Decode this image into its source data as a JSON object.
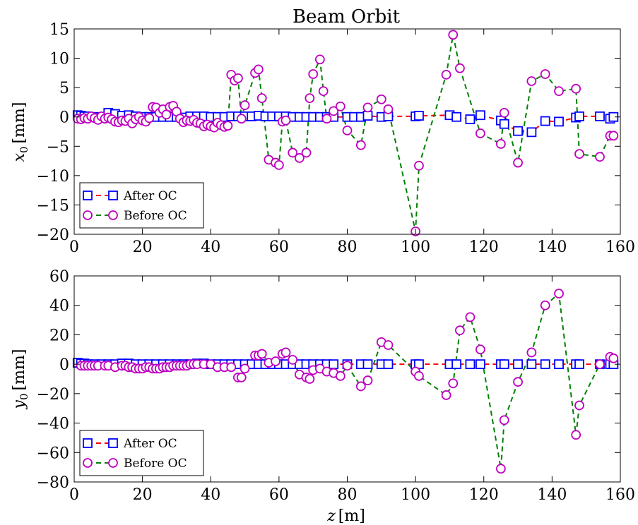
{
  "figure_title": "Beam Orbit",
  "colors": {
    "after": "#0000ff",
    "after_line": "#ff0000",
    "before": "#bf00bf",
    "before_line": "#008000"
  },
  "chart_data": [
    {
      "type": "line",
      "title": "Beam Orbit",
      "xlabel": "",
      "ylabel": "x_0 [mm]",
      "ylabel_var": "x",
      "ylabel_sub": "0",
      "ylabel_unit": "[mm]",
      "xlim": [
        0,
        160
      ],
      "ylim": [
        -20,
        15
      ],
      "xticks": [
        0,
        20,
        40,
        60,
        80,
        100,
        120,
        140,
        160
      ],
      "yticks": [
        -20,
        -15,
        -10,
        -5,
        0,
        5,
        10,
        15
      ],
      "legend_position": "bottom-left",
      "series": [
        {
          "name": "After OC",
          "marker": "square",
          "x": [
            1,
            2,
            3,
            4,
            6,
            8,
            10,
            12,
            14,
            16,
            18,
            20,
            22,
            24,
            26,
            28,
            30,
            32,
            34,
            36,
            38,
            40,
            42,
            44,
            46,
            48,
            50,
            52,
            54,
            56,
            58,
            60,
            62,
            64,
            66,
            68,
            70,
            72,
            74,
            76,
            80,
            82,
            84,
            86,
            90,
            92,
            100,
            101,
            110,
            112,
            116,
            119,
            125,
            126,
            130,
            134,
            138,
            142,
            147,
            148,
            154,
            157,
            158
          ],
          "y": [
            0.3,
            0.2,
            0.1,
            0.1,
            0,
            -0.1,
            0.7,
            0.5,
            0.2,
            0.3,
            0.1,
            0,
            0,
            0,
            0,
            0,
            0,
            -0.1,
            0.1,
            0.1,
            0.1,
            0,
            0,
            0,
            0.1,
            0.1,
            0.1,
            0.1,
            0.2,
            0.1,
            0.1,
            0.1,
            0.1,
            0,
            0,
            0,
            0,
            0,
            0,
            0,
            0,
            0,
            0,
            0.2,
            0,
            0.1,
            0.1,
            0.2,
            0.3,
            0,
            -0.4,
            0.3,
            -0.6,
            -1.2,
            -2.4,
            -2.6,
            -0.7,
            -0.8,
            -0.1,
            0.1,
            0.1,
            -0.3,
            0
          ]
        },
        {
          "name": "Before OC",
          "marker": "circle",
          "x": [
            1,
            2,
            3,
            4,
            5,
            6,
            7,
            8,
            9,
            10,
            11,
            12,
            13,
            14,
            15,
            16,
            17,
            18,
            19,
            20,
            21,
            22,
            23,
            24,
            25,
            26,
            27,
            28,
            29,
            30,
            31,
            32,
            33,
            34,
            35,
            36,
            37,
            38,
            39,
            40,
            41,
            42,
            43,
            44,
            45,
            46,
            47,
            48,
            49,
            50,
            53,
            54,
            55,
            57,
            59,
            60,
            61,
            62,
            64,
            66,
            68,
            69,
            70,
            72,
            73,
            74,
            76,
            78,
            80,
            84,
            86,
            90,
            92,
            100,
            101,
            109,
            111,
            113,
            119,
            125,
            126,
            130,
            134,
            138,
            142,
            147,
            148,
            154,
            157,
            158
          ],
          "y": [
            -0.3,
            -0.4,
            -0.2,
            -0.3,
            0.1,
            -0.2,
            -0.5,
            0.1,
            -0.3,
            -0.1,
            -0.4,
            -0.8,
            -0.9,
            -0.6,
            -0.7,
            -0.3,
            -1.1,
            -0.4,
            0,
            -0.6,
            -0.8,
            -0.2,
            1.7,
            1.6,
            0.7,
            1.3,
            0.4,
            1.7,
            1.9,
            0.9,
            -0.3,
            -0.9,
            -0.6,
            -0.7,
            -0.5,
            -1,
            -1.1,
            -1.6,
            -1.3,
            -1.6,
            -1.8,
            -1,
            -1.4,
            -1.7,
            -1.5,
            7.2,
            6.2,
            6.6,
            -0.3,
            2,
            7.5,
            8.1,
            3.2,
            -7.3,
            -7.8,
            -8.2,
            -0.8,
            -0.6,
            -6.1,
            -7,
            -6.1,
            3.2,
            7.3,
            9.8,
            4.4,
            -0.3,
            1,
            1.8,
            -2.3,
            -4.8,
            1.6,
            3,
            1.3,
            -19.5,
            -8.3,
            7.2,
            14,
            8.3,
            -2.8,
            -4.6,
            0.7,
            -7.8,
            6.1,
            7.3,
            4.4,
            4.8,
            -6.3,
            -6.8,
            -3.2,
            -3.2
          ]
        }
      ]
    },
    {
      "type": "line",
      "title": "",
      "xlabel": "z [m]",
      "xlabel_var": "z",
      "xlabel_unit": "[m]",
      "ylabel": "y_0 [mm]",
      "ylabel_var": "y",
      "ylabel_sub": "0",
      "ylabel_unit": "[mm]",
      "xlim": [
        0,
        160
      ],
      "ylim": [
        -80,
        60
      ],
      "xticks": [
        0,
        20,
        40,
        60,
        80,
        100,
        120,
        140,
        160
      ],
      "yticks": [
        -80,
        -60,
        -40,
        -20,
        0,
        20,
        40,
        60
      ],
      "legend_position": "bottom-left",
      "series": [
        {
          "name": "After OC",
          "marker": "square",
          "x": [
            1,
            2,
            3,
            4,
            6,
            8,
            10,
            12,
            14,
            16,
            18,
            20,
            22,
            24,
            26,
            28,
            30,
            32,
            34,
            36,
            38,
            40,
            42,
            44,
            46,
            48,
            50,
            52,
            54,
            56,
            58,
            60,
            62,
            64,
            66,
            68,
            70,
            72,
            74,
            76,
            80,
            84,
            86,
            90,
            92,
            100,
            101,
            110,
            112,
            116,
            119,
            125,
            126,
            130,
            134,
            138,
            142,
            147,
            148,
            154,
            157,
            158
          ],
          "y": [
            1,
            0.5,
            0.5,
            0,
            0,
            0,
            0,
            0,
            0.5,
            0.5,
            0,
            0,
            0,
            0,
            0,
            0,
            0,
            0,
            0,
            0.5,
            0.5,
            0,
            0,
            0,
            0,
            0,
            0,
            0,
            0,
            0,
            0,
            0,
            0,
            0,
            0,
            0,
            0,
            0,
            0,
            0,
            0,
            0,
            0,
            0,
            0,
            0,
            0,
            0,
            0,
            0,
            0,
            0,
            0,
            0,
            0,
            0,
            0,
            0,
            0,
            0,
            0,
            0
          ]
        },
        {
          "name": "Before OC",
          "marker": "circle",
          "x": [
            2,
            3,
            4,
            5,
            6,
            7,
            9,
            10,
            12,
            14,
            15,
            16,
            17,
            18,
            19,
            20,
            21,
            22,
            23,
            24,
            25,
            26,
            27,
            28,
            29,
            30,
            31,
            32,
            33,
            34,
            35,
            36,
            38,
            40,
            42,
            44,
            46,
            48,
            49,
            50,
            53,
            54,
            55,
            57,
            59,
            61,
            62,
            64,
            66,
            68,
            69,
            70,
            72,
            74,
            76,
            78,
            80,
            84,
            86,
            90,
            92,
            100,
            101,
            109,
            111,
            113,
            116,
            119,
            125,
            126,
            130,
            134,
            138,
            142,
            147,
            148,
            154,
            157,
            158
          ],
          "y": [
            -1,
            -1,
            -1,
            -1,
            -1,
            -1,
            -1,
            -1,
            -2,
            -1,
            -1,
            -2,
            -2,
            -3,
            -3,
            -3,
            -2,
            -2,
            -3,
            -3,
            -3,
            -2,
            -2,
            -2,
            -1,
            -1,
            -1,
            -1,
            -1,
            0,
            0,
            0,
            0,
            0,
            -2,
            -2,
            -2,
            -9,
            -9,
            -3,
            6,
            6,
            7,
            1,
            2,
            7,
            8,
            3,
            -7,
            -9,
            -10,
            -4,
            -3,
            -5,
            -6,
            -8,
            -1,
            -15,
            -11,
            15,
            13,
            -5,
            -8,
            -21,
            -13,
            23,
            32,
            10,
            -71,
            -38,
            -12,
            8,
            40,
            48,
            -48,
            -28,
            0,
            5,
            4
          ]
        }
      ]
    }
  ]
}
